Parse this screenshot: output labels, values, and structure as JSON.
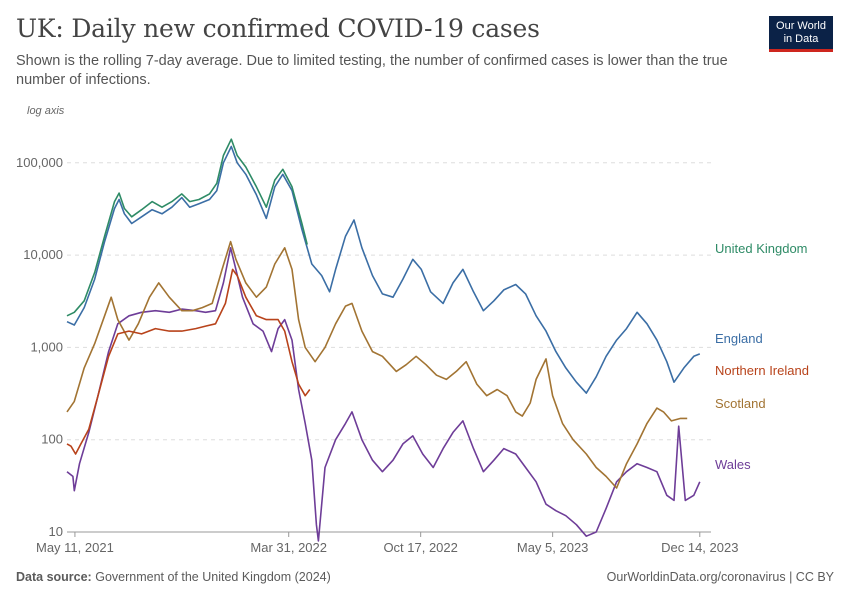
{
  "header": {
    "title": "UK: Daily new confirmed COVID-19 cases",
    "subtitle": "Shown is the rolling 7-day average. Due to limited testing, the number of confirmed cases is lower than the true number of infections."
  },
  "logo": {
    "line1": "Our World",
    "line2": "in Data"
  },
  "footer": {
    "source_label": "Data source:",
    "source_text": "Government of the United Kingdom (2024)",
    "link_text": "OurWorldinData.org/coronavirus | CC BY"
  },
  "chart_data": {
    "type": "line",
    "y_scale": "log",
    "y_scale_label": "log axis",
    "ylim": [
      10,
      200000
    ],
    "y_ticks": [
      10,
      100,
      1000,
      10000,
      100000
    ],
    "y_tick_labels": [
      "10",
      "100",
      "1,000",
      "10,000",
      "100,000"
    ],
    "x_range": [
      "2021-04-29",
      "2023-12-31"
    ],
    "x_ticks": [
      "2021-05-11",
      "2022-03-31",
      "2022-10-17",
      "2023-05-05",
      "2023-12-14"
    ],
    "x_tick_labels": [
      "May 11, 2021",
      "Mar 31, 2022",
      "Oct 17, 2022",
      "May 5, 2023",
      "Dec 14, 2023"
    ],
    "grid": true,
    "legend_placement": "right, at line ends",
    "series": [
      {
        "name": "United Kingdom",
        "color": "#2e8b66",
        "points": [
          [
            "2021-04-29",
            2200
          ],
          [
            "2021-05-10",
            2400
          ],
          [
            "2021-05-25",
            3200
          ],
          [
            "2021-06-10",
            6500
          ],
          [
            "2021-06-25",
            16000
          ],
          [
            "2021-07-10",
            38000
          ],
          [
            "2021-07-17",
            47000
          ],
          [
            "2021-07-25",
            32000
          ],
          [
            "2021-08-05",
            26000
          ],
          [
            "2021-08-20",
            31000
          ],
          [
            "2021-09-05",
            38000
          ],
          [
            "2021-09-20",
            33000
          ],
          [
            "2021-10-05",
            38000
          ],
          [
            "2021-10-20",
            46000
          ],
          [
            "2021-11-01",
            38000
          ],
          [
            "2021-11-15",
            40000
          ],
          [
            "2021-12-01",
            46000
          ],
          [
            "2021-12-12",
            60000
          ],
          [
            "2021-12-22",
            120000
          ],
          [
            "2022-01-03",
            180000
          ],
          [
            "2022-01-12",
            120000
          ],
          [
            "2022-01-25",
            90000
          ],
          [
            "2022-02-10",
            55000
          ],
          [
            "2022-02-25",
            33000
          ],
          [
            "2022-03-10",
            65000
          ],
          [
            "2022-03-22",
            85000
          ],
          [
            "2022-04-05",
            55000
          ],
          [
            "2022-04-20",
            22000
          ],
          [
            "2022-04-28",
            13000
          ]
        ]
      },
      {
        "name": "England",
        "color": "#3b6ea5",
        "points": [
          [
            "2021-04-29",
            1900
          ],
          [
            "2021-05-10",
            1750
          ],
          [
            "2021-05-25",
            2700
          ],
          [
            "2021-06-10",
            5500
          ],
          [
            "2021-06-25",
            14000
          ],
          [
            "2021-07-10",
            32000
          ],
          [
            "2021-07-17",
            40000
          ],
          [
            "2021-07-25",
            28000
          ],
          [
            "2021-08-05",
            22000
          ],
          [
            "2021-08-20",
            26000
          ],
          [
            "2021-09-05",
            31000
          ],
          [
            "2021-09-20",
            28000
          ],
          [
            "2021-10-05",
            33000
          ],
          [
            "2021-10-20",
            42000
          ],
          [
            "2021-11-01",
            33000
          ],
          [
            "2021-11-15",
            36000
          ],
          [
            "2021-12-01",
            40000
          ],
          [
            "2021-12-12",
            50000
          ],
          [
            "2021-12-22",
            100000
          ],
          [
            "2022-01-03",
            150000
          ],
          [
            "2022-01-12",
            100000
          ],
          [
            "2022-01-25",
            75000
          ],
          [
            "2022-02-10",
            45000
          ],
          [
            "2022-02-25",
            25000
          ],
          [
            "2022-03-10",
            55000
          ],
          [
            "2022-03-22",
            75000
          ],
          [
            "2022-04-05",
            50000
          ],
          [
            "2022-04-20",
            19000
          ],
          [
            "2022-05-05",
            8000
          ],
          [
            "2022-05-20",
            6000
          ],
          [
            "2022-06-01",
            4000
          ],
          [
            "2022-06-10",
            7000
          ],
          [
            "2022-06-25",
            16000
          ],
          [
            "2022-07-08",
            24000
          ],
          [
            "2022-07-20",
            12000
          ],
          [
            "2022-08-05",
            6000
          ],
          [
            "2022-08-20",
            3800
          ],
          [
            "2022-09-05",
            3500
          ],
          [
            "2022-09-20",
            5500
          ],
          [
            "2022-10-05",
            9000
          ],
          [
            "2022-10-18",
            7000
          ],
          [
            "2022-11-01",
            4000
          ],
          [
            "2022-11-20",
            3000
          ],
          [
            "2022-12-05",
            5000
          ],
          [
            "2022-12-20",
            7000
          ],
          [
            "2023-01-05",
            4000
          ],
          [
            "2023-01-20",
            2500
          ],
          [
            "2023-02-05",
            3200
          ],
          [
            "2023-02-20",
            4200
          ],
          [
            "2023-03-10",
            4800
          ],
          [
            "2023-03-25",
            3800
          ],
          [
            "2023-04-10",
            2200
          ],
          [
            "2023-04-25",
            1500
          ],
          [
            "2023-05-10",
            900
          ],
          [
            "2023-05-25",
            600
          ],
          [
            "2023-06-10",
            420
          ],
          [
            "2023-06-25",
            320
          ],
          [
            "2023-07-10",
            480
          ],
          [
            "2023-07-25",
            800
          ],
          [
            "2023-08-10",
            1200
          ],
          [
            "2023-08-25",
            1600
          ],
          [
            "2023-09-10",
            2400
          ],
          [
            "2023-09-25",
            1800
          ],
          [
            "2023-10-10",
            1200
          ],
          [
            "2023-10-25",
            700
          ],
          [
            "2023-11-05",
            420
          ],
          [
            "2023-11-20",
            600
          ],
          [
            "2023-12-05",
            800
          ],
          [
            "2023-12-14",
            850
          ]
        ]
      },
      {
        "name": "Northern Ireland",
        "color": "#b8431b",
        "points": [
          [
            "2021-04-29",
            90
          ],
          [
            "2021-05-05",
            85
          ],
          [
            "2021-05-12",
            70
          ],
          [
            "2021-05-20",
            90
          ],
          [
            "2021-06-01",
            130
          ],
          [
            "2021-06-15",
            300
          ],
          [
            "2021-07-01",
            800
          ],
          [
            "2021-07-15",
            1400
          ],
          [
            "2021-08-01",
            1500
          ],
          [
            "2021-08-20",
            1400
          ],
          [
            "2021-09-10",
            1600
          ],
          [
            "2021-10-01",
            1500
          ],
          [
            "2021-10-20",
            1500
          ],
          [
            "2021-11-10",
            1600
          ],
          [
            "2021-11-25",
            1700
          ],
          [
            "2021-12-10",
            1800
          ],
          [
            "2021-12-25",
            3000
          ],
          [
            "2022-01-05",
            7000
          ],
          [
            "2022-01-12",
            6000
          ],
          [
            "2022-01-25",
            3500
          ],
          [
            "2022-02-10",
            2200
          ],
          [
            "2022-02-25",
            2000
          ],
          [
            "2022-03-15",
            2000
          ],
          [
            "2022-03-25",
            1500
          ],
          [
            "2022-04-05",
            700
          ],
          [
            "2022-04-15",
            400
          ],
          [
            "2022-04-25",
            300
          ],
          [
            "2022-05-02",
            350
          ]
        ]
      },
      {
        "name": "Scotland",
        "color": "#a27433",
        "points": [
          [
            "2021-04-29",
            200
          ],
          [
            "2021-05-10",
            260
          ],
          [
            "2021-05-25",
            600
          ],
          [
            "2021-06-10",
            1100
          ],
          [
            "2021-06-25",
            2200
          ],
          [
            "2021-07-05",
            3500
          ],
          [
            "2021-07-15",
            2000
          ],
          [
            "2021-08-01",
            1200
          ],
          [
            "2021-08-15",
            1800
          ],
          [
            "2021-09-01",
            3500
          ],
          [
            "2021-09-15",
            5000
          ],
          [
            "2021-10-01",
            3500
          ],
          [
            "2021-10-20",
            2500
          ],
          [
            "2021-11-05",
            2500
          ],
          [
            "2021-11-20",
            2700
          ],
          [
            "2021-12-05",
            3000
          ],
          [
            "2021-12-20",
            7000
          ],
          [
            "2022-01-02",
            14000
          ],
          [
            "2022-01-10",
            9000
          ],
          [
            "2022-01-25",
            5000
          ],
          [
            "2022-02-10",
            3500
          ],
          [
            "2022-02-25",
            4500
          ],
          [
            "2022-03-10",
            8000
          ],
          [
            "2022-03-25",
            12000
          ],
          [
            "2022-04-05",
            7000
          ],
          [
            "2022-04-15",
            2000
          ],
          [
            "2022-04-25",
            1000
          ],
          [
            "2022-05-10",
            700
          ],
          [
            "2022-05-25",
            1000
          ],
          [
            "2022-06-10",
            1800
          ],
          [
            "2022-06-25",
            2800
          ],
          [
            "2022-07-05",
            3000
          ],
          [
            "2022-07-20",
            1500
          ],
          [
            "2022-08-05",
            900
          ],
          [
            "2022-08-20",
            800
          ],
          [
            "2022-09-10",
            550
          ],
          [
            "2022-09-25",
            650
          ],
          [
            "2022-10-10",
            800
          ],
          [
            "2022-10-25",
            650
          ],
          [
            "2022-11-10",
            500
          ],
          [
            "2022-11-25",
            450
          ],
          [
            "2022-12-10",
            550
          ],
          [
            "2022-12-25",
            700
          ],
          [
            "2023-01-10",
            400
          ],
          [
            "2023-01-25",
            300
          ],
          [
            "2023-02-10",
            350
          ],
          [
            "2023-02-25",
            300
          ],
          [
            "2023-03-10",
            200
          ],
          [
            "2023-03-20",
            180
          ],
          [
            "2023-04-01",
            250
          ],
          [
            "2023-04-10",
            450
          ],
          [
            "2023-04-25",
            750
          ],
          [
            "2023-05-05",
            300
          ],
          [
            "2023-05-20",
            150
          ],
          [
            "2023-06-05",
            100
          ],
          [
            "2023-06-25",
            70
          ],
          [
            "2023-07-10",
            50
          ],
          [
            "2023-07-25",
            40
          ],
          [
            "2023-08-10",
            30
          ],
          [
            "2023-08-25",
            55
          ],
          [
            "2023-09-10",
            90
          ],
          [
            "2023-09-25",
            150
          ],
          [
            "2023-10-10",
            220
          ],
          [
            "2023-10-20",
            200
          ],
          [
            "2023-11-01",
            160
          ],
          [
            "2023-11-15",
            170
          ],
          [
            "2023-11-25",
            170
          ]
        ]
      },
      {
        "name": "Wales",
        "color": "#6e3d98",
        "points": [
          [
            "2021-04-29",
            45
          ],
          [
            "2021-05-08",
            40
          ],
          [
            "2021-05-10",
            28
          ],
          [
            "2021-05-18",
            55
          ],
          [
            "2021-06-01",
            120
          ],
          [
            "2021-06-15",
            300
          ],
          [
            "2021-07-01",
            900
          ],
          [
            "2021-07-15",
            1800
          ],
          [
            "2021-08-01",
            2200
          ],
          [
            "2021-08-20",
            2400
          ],
          [
            "2021-09-10",
            2500
          ],
          [
            "2021-10-01",
            2400
          ],
          [
            "2021-10-20",
            2600
          ],
          [
            "2021-11-10",
            2500
          ],
          [
            "2021-11-25",
            2400
          ],
          [
            "2021-12-10",
            2500
          ],
          [
            "2021-12-22",
            5000
          ],
          [
            "2022-01-02",
            12000
          ],
          [
            "2022-01-10",
            7000
          ],
          [
            "2022-01-20",
            3500
          ],
          [
            "2022-02-05",
            1800
          ],
          [
            "2022-02-20",
            1500
          ],
          [
            "2022-03-05",
            900
          ],
          [
            "2022-03-15",
            1600
          ],
          [
            "2022-03-25",
            2000
          ],
          [
            "2022-04-05",
            1200
          ],
          [
            "2022-04-15",
            350
          ],
          [
            "2022-04-25",
            150
          ],
          [
            "2022-05-05",
            60
          ],
          [
            "2022-05-12",
            12
          ],
          [
            "2022-05-15",
            8
          ],
          [
            "2022-05-25",
            50
          ],
          [
            "2022-06-10",
            100
          ],
          [
            "2022-06-25",
            150
          ],
          [
            "2022-07-05",
            200
          ],
          [
            "2022-07-20",
            100
          ],
          [
            "2022-08-05",
            60
          ],
          [
            "2022-08-20",
            45
          ],
          [
            "2022-09-05",
            60
          ],
          [
            "2022-09-20",
            90
          ],
          [
            "2022-10-05",
            110
          ],
          [
            "2022-10-20",
            70
          ],
          [
            "2022-11-05",
            50
          ],
          [
            "2022-11-20",
            80
          ],
          [
            "2022-12-05",
            120
          ],
          [
            "2022-12-20",
            160
          ],
          [
            "2023-01-05",
            80
          ],
          [
            "2023-01-20",
            45
          ],
          [
            "2023-02-05",
            60
          ],
          [
            "2023-02-20",
            80
          ],
          [
            "2023-03-10",
            70
          ],
          [
            "2023-03-25",
            50
          ],
          [
            "2023-04-10",
            35
          ],
          [
            "2023-04-25",
            20
          ],
          [
            "2023-05-10",
            17
          ],
          [
            "2023-05-25",
            15
          ],
          [
            "2023-06-10",
            12
          ],
          [
            "2023-06-25",
            9
          ],
          [
            "2023-07-10",
            10
          ],
          [
            "2023-07-25",
            18
          ],
          [
            "2023-08-10",
            35
          ],
          [
            "2023-08-25",
            45
          ],
          [
            "2023-09-10",
            55
          ],
          [
            "2023-09-25",
            50
          ],
          [
            "2023-10-10",
            45
          ],
          [
            "2023-10-25",
            25
          ],
          [
            "2023-11-05",
            22
          ],
          [
            "2023-11-12",
            140
          ],
          [
            "2023-11-22",
            22
          ],
          [
            "2023-12-05",
            25
          ],
          [
            "2023-12-14",
            35
          ]
        ]
      }
    ]
  }
}
